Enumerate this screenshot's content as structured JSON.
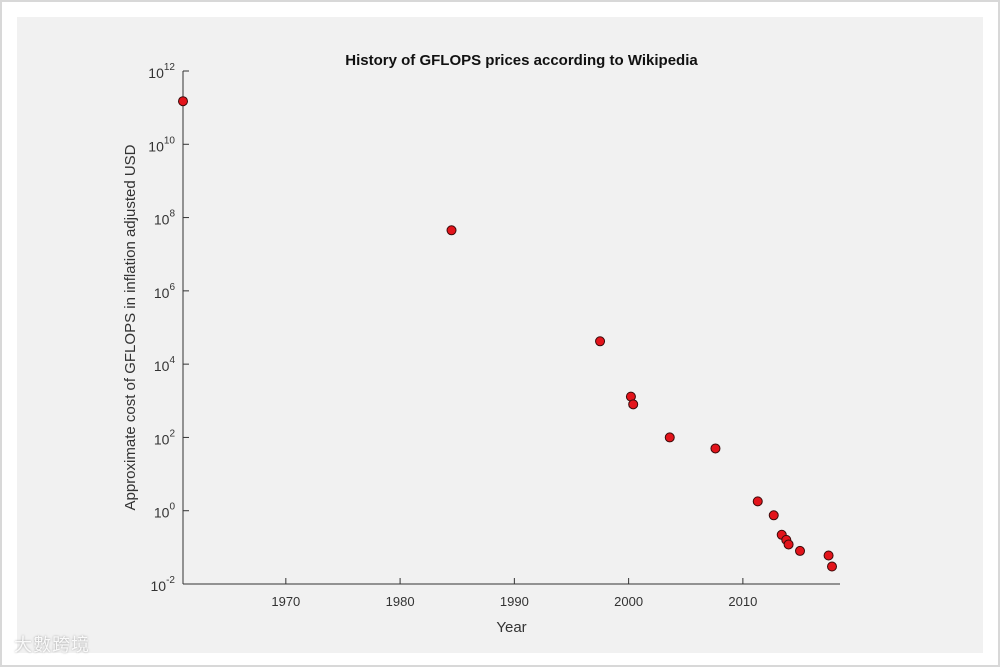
{
  "chart_data": {
    "type": "scatter",
    "title": "History of GFLOPS prices according to Wikipedia",
    "xlabel": "Year",
    "ylabel": "Approximate cost of GFLOPS in inflation adjusted USD",
    "yscale": "log",
    "xlim": [
      1961,
      2018.5
    ],
    "ylim_exponents": [
      -2,
      12
    ],
    "x_ticks": [
      1970,
      1980,
      1990,
      2000,
      2010
    ],
    "y_tick_exponents": [
      -2,
      0,
      2,
      4,
      6,
      8,
      10,
      12
    ],
    "grid": false,
    "marker_color": "#e3141b",
    "marker_edge": "#3a0a0a",
    "points": [
      {
        "year": 1961,
        "cost": 150000000000.0
      },
      {
        "year": 1984.5,
        "cost": 45000000.0
      },
      {
        "year": 1997.5,
        "cost": 42000
      },
      {
        "year": 2000.2,
        "cost": 1300
      },
      {
        "year": 2000.4,
        "cost": 800
      },
      {
        "year": 2003.6,
        "cost": 100
      },
      {
        "year": 2007.6,
        "cost": 50
      },
      {
        "year": 2011.3,
        "cost": 1.8
      },
      {
        "year": 2012.7,
        "cost": 0.75
      },
      {
        "year": 2013.4,
        "cost": 0.22
      },
      {
        "year": 2013.8,
        "cost": 0.16
      },
      {
        "year": 2014.0,
        "cost": 0.12
      },
      {
        "year": 2015.0,
        "cost": 0.08
      },
      {
        "year": 2017.5,
        "cost": 0.06
      },
      {
        "year": 2017.8,
        "cost": 0.03
      }
    ]
  },
  "watermark": {
    "text": "大數跨境"
  }
}
